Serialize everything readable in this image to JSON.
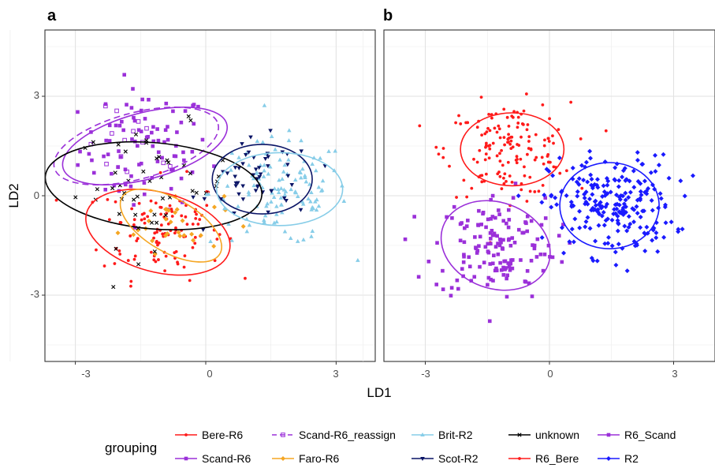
{
  "colors": {
    "Bere-R6": "#ff1a1a",
    "Scand-R6": "#9b30d9",
    "Scand-R6_reassign": "#9b30d9",
    "Faro-R6": "#f5a623",
    "Brit-R2": "#87cde8",
    "Scot-R2": "#0a1466",
    "unknown": "#000000",
    "R6_Bere": "#ff1a1a",
    "R6_Scand": "#9b30d9",
    "R2": "#1a1aff"
  },
  "chart_data": [
    {
      "panel": "a",
      "type": "scatter",
      "xlim": [
        -3.7,
        3.9
      ],
      "ylim": [
        -5.0,
        5.0
      ],
      "xticks": [
        -3,
        0,
        3
      ],
      "yticks": [
        -3,
        0,
        3
      ],
      "tick_labels_x": [
        "-3",
        "0",
        "3"
      ],
      "tick_labels_y": [
        "-3",
        "0",
        "3"
      ],
      "grid": true,
      "ellipses": [
        {
          "group": "Scand-R6",
          "cx": -1.4,
          "cy": 1.5,
          "rx": 1.95,
          "ry": 1.0,
          "angle": -15
        },
        {
          "group": "Scand-R6_reassign",
          "cx": -1.6,
          "cy": 1.5,
          "rx": 1.95,
          "ry": 1.0,
          "angle": -15,
          "dashed": true
        },
        {
          "group": "unknown",
          "cx": -1.2,
          "cy": 0.3,
          "rx": 2.5,
          "ry": 1.3,
          "angle": 5
        },
        {
          "group": "Bere-R6",
          "cx": -1.1,
          "cy": -1.1,
          "rx": 1.7,
          "ry": 1.2,
          "angle": 15
        },
        {
          "group": "Faro-R6",
          "cx": -0.8,
          "cy": -0.9,
          "rx": 1.3,
          "ry": 0.8,
          "angle": 30
        },
        {
          "group": "Scot-R2",
          "cx": 1.3,
          "cy": 0.5,
          "rx": 1.15,
          "ry": 1.05,
          "angle": 0
        },
        {
          "group": "Brit-R2",
          "cx": 1.7,
          "cy": 0.2,
          "rx": 1.45,
          "ry": 1.1,
          "angle": 0
        }
      ],
      "clusters": [
        {
          "group": "Scand-R6",
          "marker": "square",
          "cx": -1.4,
          "cy": 1.4,
          "sx": 0.75,
          "sy": 0.9,
          "n": 90
        },
        {
          "group": "Scand-R6_reassign",
          "marker": "open-square",
          "cx": -1.6,
          "cy": 1.4,
          "sx": 0.6,
          "sy": 0.6,
          "n": 14
        },
        {
          "group": "Bere-R6",
          "marker": "dot",
          "cx": -1.0,
          "cy": -1.0,
          "sx": 0.7,
          "sy": 0.75,
          "n": 110
        },
        {
          "group": "Faro-R6",
          "marker": "diamond",
          "cx": -0.8,
          "cy": -0.8,
          "sx": 0.6,
          "sy": 0.45,
          "n": 30
        },
        {
          "group": "unknown",
          "marker": "cross",
          "cx": -1.2,
          "cy": 0.3,
          "sx": 0.9,
          "sy": 0.9,
          "n": 50
        },
        {
          "group": "Brit-R2",
          "marker": "triangle-up",
          "cx": 1.7,
          "cy": 0.1,
          "sx": 0.8,
          "sy": 0.8,
          "n": 120
        },
        {
          "group": "Scot-R2",
          "marker": "triangle-down",
          "cx": 1.3,
          "cy": 0.5,
          "sx": 0.6,
          "sy": 0.6,
          "n": 50
        }
      ]
    },
    {
      "panel": "b",
      "type": "scatter",
      "xlim": [
        -4.0,
        4.0
      ],
      "ylim": [
        -5.0,
        5.0
      ],
      "xticks": [
        -3,
        0,
        3
      ],
      "tick_labels_x": [
        "-3",
        "0",
        "3"
      ],
      "grid": true,
      "ellipses": [
        {
          "group": "R6_Bere",
          "cx": -0.9,
          "cy": 1.4,
          "rx": 1.25,
          "ry": 1.1,
          "angle": 0
        },
        {
          "group": "R6_Scand",
          "cx": -1.3,
          "cy": -1.5,
          "rx": 1.35,
          "ry": 1.3,
          "angle": 20
        },
        {
          "group": "R2",
          "cx": 1.45,
          "cy": -0.3,
          "rx": 1.2,
          "ry": 1.3,
          "angle": 0
        }
      ],
      "clusters": [
        {
          "group": "R6_Bere",
          "marker": "dot",
          "cx": -1.0,
          "cy": 1.4,
          "sx": 0.75,
          "sy": 0.7,
          "n": 150
        },
        {
          "group": "R6_Scand",
          "marker": "square",
          "cx": -1.3,
          "cy": -1.5,
          "sx": 0.75,
          "sy": 0.8,
          "n": 150
        },
        {
          "group": "R2",
          "marker": "diamond",
          "cx": 1.5,
          "cy": -0.3,
          "sx": 0.75,
          "sy": 0.75,
          "n": 230
        }
      ]
    }
  ],
  "panels": {
    "a_label": "a",
    "b_label": "b"
  },
  "axes": {
    "xlabel": "LD1",
    "ylabel": "LD2",
    "x_ticks": [
      "-3",
      "0",
      "3"
    ],
    "y_ticks": [
      "-3",
      "0",
      "3"
    ]
  },
  "legend": {
    "title": "grouping",
    "items": [
      {
        "label": "Bere-R6",
        "group": "Bere-R6",
        "line": "solid",
        "marker": "dot"
      },
      {
        "label": "Scand-R6_reassign",
        "group": "Scand-R6_reassign",
        "line": "dashed",
        "marker": "open-square"
      },
      {
        "label": "Brit-R2",
        "group": "Brit-R2",
        "line": "solid",
        "marker": "triangle-up"
      },
      {
        "label": "unknown",
        "group": "unknown",
        "line": "solid",
        "marker": "cross"
      },
      {
        "label": "R6_Scand",
        "group": "R6_Scand",
        "line": "solid",
        "marker": "square"
      },
      {
        "label": "Scand-R6",
        "group": "Scand-R6",
        "line": "solid",
        "marker": "square"
      },
      {
        "label": "Faro-R6",
        "group": "Faro-R6",
        "line": "solid",
        "marker": "diamond"
      },
      {
        "label": "Scot-R2",
        "group": "Scot-R2",
        "line": "solid",
        "marker": "triangle-down"
      },
      {
        "label": "R6_Bere",
        "group": "R6_Bere",
        "line": "solid",
        "marker": "dot"
      },
      {
        "label": "R2",
        "group": "R2",
        "line": "solid",
        "marker": "diamond"
      }
    ]
  }
}
